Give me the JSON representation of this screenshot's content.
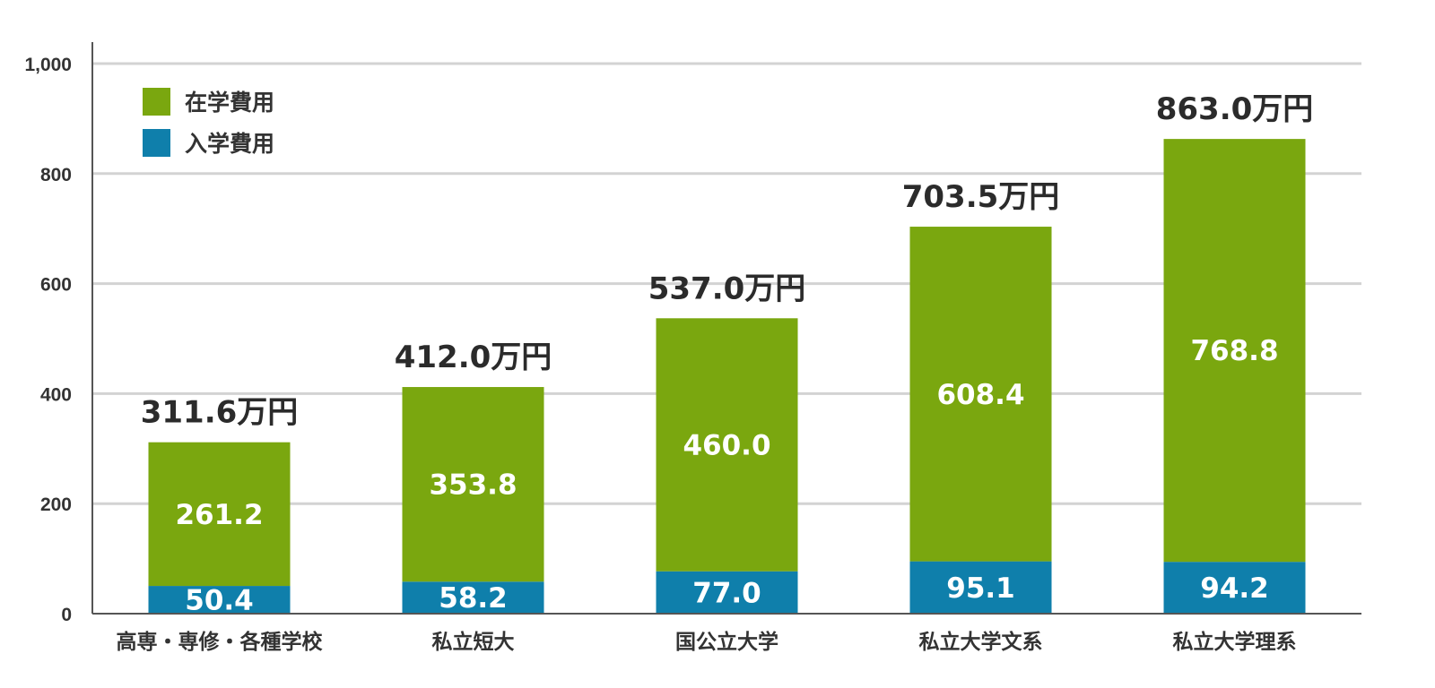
{
  "chart_data": {
    "type": "bar",
    "stacked": true,
    "categories": [
      "高専・専修・各種学校",
      "私立短大",
      "国公立大学",
      "私立大学文系",
      "私立大学理系"
    ],
    "series": [
      {
        "name": "入学費用",
        "color": "#0f7fab",
        "values": [
          50.4,
          58.2,
          77.0,
          95.1,
          94.2
        ],
        "labels": [
          "50.4",
          "58.2",
          "77.0",
          "95.1",
          "94.2"
        ]
      },
      {
        "name": "在学費用",
        "color": "#7aa70f",
        "values": [
          261.2,
          353.8,
          460.0,
          608.4,
          768.8
        ],
        "labels": [
          "261.2",
          "353.8",
          "460.0",
          "608.4",
          "768.8"
        ]
      }
    ],
    "totals": [
      "311.6万円",
      "412.0万円",
      "537.0万円",
      "703.5万円",
      "863.0万円"
    ],
    "legend": [
      {
        "name": "在学費用",
        "color": "#7aa70f"
      },
      {
        "name": "入学費用",
        "color": "#0f7fab"
      }
    ],
    "legend_position": "top-left",
    "yticks": [
      0,
      200,
      400,
      600,
      800,
      1000
    ],
    "ytick_labels": [
      "0",
      "200",
      "400",
      "600",
      "800",
      "1,000"
    ],
    "ylim": [
      0,
      1000
    ],
    "grid": true,
    "title": "",
    "xlabel": "",
    "ylabel": ""
  }
}
